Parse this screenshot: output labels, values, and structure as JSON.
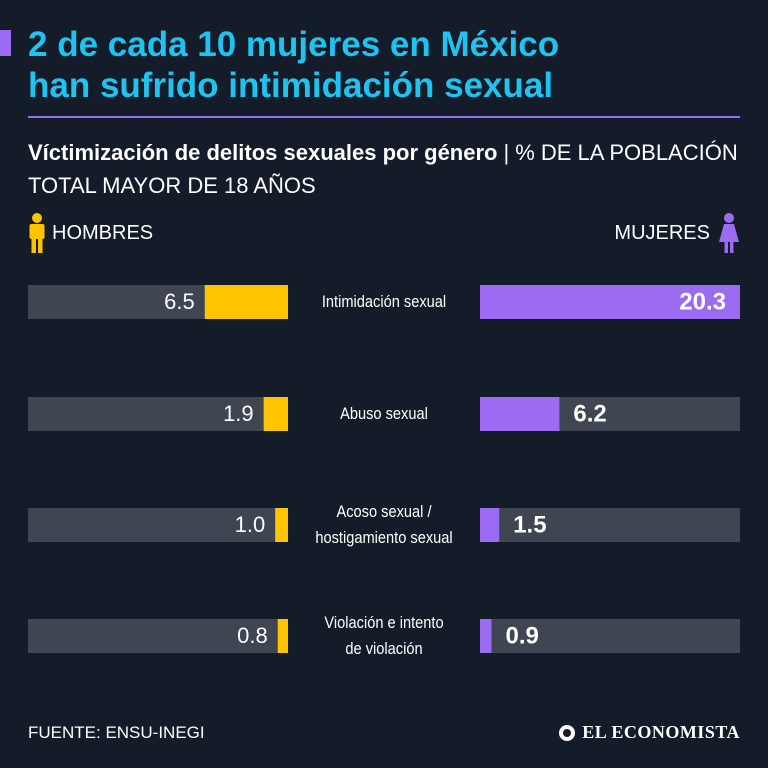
{
  "header": {
    "headline_line1": "2 de cada 10 mujeres en México",
    "headline_line2": "han sufrido intimidación sexual",
    "subtitle_bold": "Víctimización de delitos sexuales por género",
    "subtitle_sep": "|",
    "subtitle_unit": "% DE LA POBLACIÓN TOTAL MAYOR DE 18 AÑOS"
  },
  "legend": {
    "men": "HOMBRES",
    "women": "MUJERES"
  },
  "colors": {
    "background": "#141c29",
    "headline": "#1fc3ef",
    "accent": "#9b6cf2",
    "men_bar": "#ffc400",
    "women_bar": "#9b6cf2",
    "track": "#3f4652"
  },
  "chart_data": {
    "type": "bar",
    "title": "Víctimización de delitos sexuales por género",
    "ylabel": "% de la población total mayor de 18 años",
    "orientation": "horizontal-diverging",
    "xlim": [
      0,
      20.3
    ],
    "categories": [
      {
        "line1": "Intimidación sexual",
        "line2": ""
      },
      {
        "line1": "Abuso sexual",
        "line2": ""
      },
      {
        "line1": "Acoso sexual /",
        "line2": "hostigamiento sexual"
      },
      {
        "line1": "Violación e intento",
        "line2": "de violación"
      }
    ],
    "series": [
      {
        "name": "HOMBRES",
        "values": [
          6.5,
          1.9,
          1.0,
          0.8
        ],
        "labels": [
          "6.5",
          "1.9",
          "1.0",
          "0.8"
        ]
      },
      {
        "name": "MUJERES",
        "values": [
          20.3,
          6.2,
          1.5,
          0.9
        ],
        "labels": [
          "20.3",
          "6.2",
          "1.5",
          "0.9"
        ]
      }
    ]
  },
  "footer": {
    "source": "FUENTE: ENSU-INEGI",
    "brand": "EL ECONOMISTA"
  }
}
